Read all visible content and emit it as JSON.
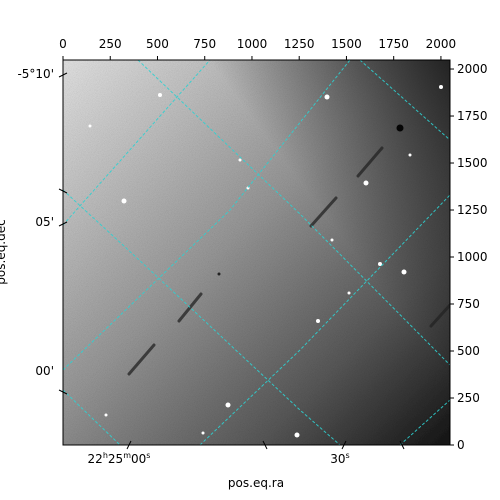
{
  "chart_data": {
    "type": "image",
    "title": "",
    "xlabel": "pos.eq.ra",
    "ylabel": "pos.eq.dec",
    "pixel_axes": {
      "x": {
        "range": [
          0,
          2048
        ],
        "ticks": [
          0,
          250,
          500,
          750,
          1000,
          1250,
          1500,
          1750,
          2000
        ]
      },
      "y": {
        "range": [
          0,
          2048
        ],
        "ticks": [
          0,
          250,
          500,
          750,
          1000,
          1250,
          1500,
          1750,
          2000
        ]
      }
    },
    "ra_ticks": [
      {
        "label": "22h25m00s",
        "h": "22",
        "m": "25",
        "s": "00"
      },
      {
        "label": "30s",
        "s": "30"
      }
    ],
    "dec_ticks": [
      {
        "label": "-5°10'"
      },
      {
        "label": "05'"
      },
      {
        "label": "00'"
      }
    ],
    "grid": true,
    "grid_color": "#2fd0d0",
    "colormap": "gray",
    "background_gradient": [
      "#e6e6e6",
      "#141414"
    ]
  }
}
